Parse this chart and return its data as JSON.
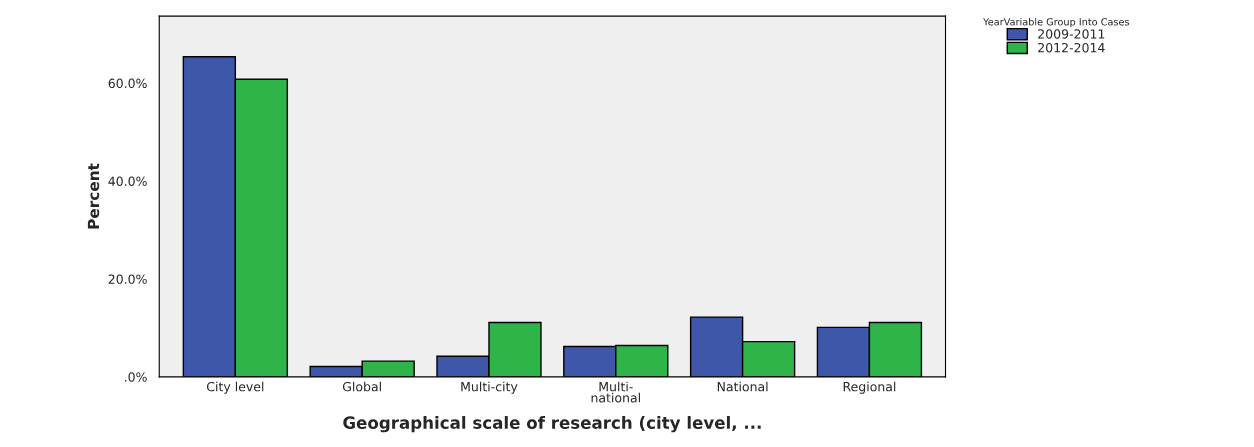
{
  "chart_data": {
    "type": "bar",
    "xlabel": "Geographical scale of research (city level, ...",
    "ylabel": "Percent",
    "legend_title": "YearVariable Group Into Cases",
    "categories": [
      "City level",
      "Global",
      "Multi-city",
      "Multi-\nnational",
      "National",
      "Regional"
    ],
    "series": [
      {
        "name": "2009-2011",
        "color": "#3f57a8",
        "values": [
          65.4,
          2.1,
          4.2,
          6.2,
          12.2,
          10.1
        ]
      },
      {
        "name": "2012-2014",
        "color": "#2fb44a",
        "values": [
          60.8,
          3.2,
          11.1,
          6.4,
          7.2,
          11.1
        ]
      }
    ],
    "ylim": [
      0,
      73.7
    ],
    "yticks": [
      {
        "value": 0,
        "label": ".0%"
      },
      {
        "value": 20,
        "label": "20.0%"
      },
      {
        "value": 40,
        "label": "40.0%"
      },
      {
        "value": 60,
        "label": "60.0%"
      }
    ],
    "grid": false,
    "legend": "top right"
  }
}
